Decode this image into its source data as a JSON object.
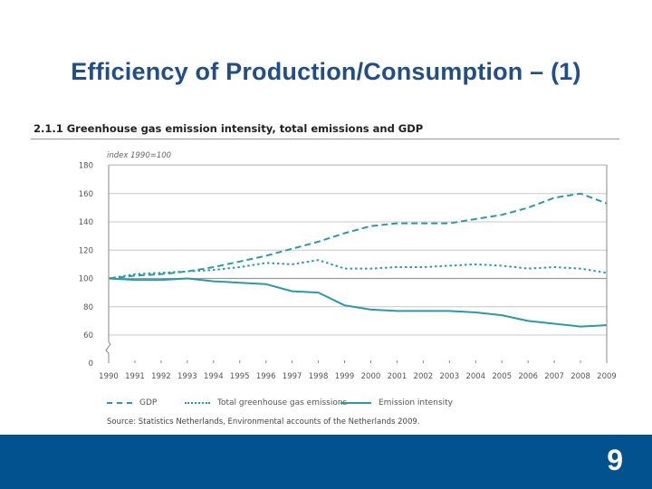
{
  "slide": {
    "title": "Efficiency of Production/Consumption – (1)",
    "page_number": "9",
    "footer_color": "#02528f",
    "title_color": "#1f4e8a"
  },
  "chart_data": {
    "type": "line",
    "title": "2.1.1  Greenhouse gas emission intensity, total emissions and GDP",
    "ylabel": "index 1990=100",
    "xlabel": "",
    "source": "Source: Statistics Netherlands, Environmental accounts of the Netherlands 2009.",
    "x": [
      1990,
      1991,
      1992,
      1993,
      1994,
      1995,
      1996,
      1997,
      1998,
      1999,
      2000,
      2001,
      2002,
      2003,
      2004,
      2005,
      2006,
      2007,
      2008,
      2009
    ],
    "x_tick_labels": [
      "1990",
      "1991",
      "1992",
      "1993",
      "1994",
      "1995",
      "1996",
      "1997",
      "1998",
      "1999",
      "2000",
      "2001",
      "2002",
      "2003",
      "2004",
      "2005",
      "2006",
      "2007",
      "2008",
      "2009"
    ],
    "y_tick_labels": [
      "0",
      "60",
      "80",
      "100",
      "120",
      "140",
      "160",
      "180"
    ],
    "y_ticks": [
      0,
      60,
      80,
      100,
      120,
      140,
      160,
      180
    ],
    "ylim": [
      0,
      180
    ],
    "axis_break": "between 0 and 60",
    "grid": true,
    "legend_position": "bottom",
    "line_color": "#2a9aa8",
    "series": [
      {
        "name": "GDP",
        "style": "dashed",
        "values": [
          100,
          102,
          103,
          105,
          108,
          112,
          116,
          121,
          126,
          132,
          137,
          139,
          139,
          139,
          142,
          145,
          150,
          157,
          160,
          153
        ]
      },
      {
        "name": "Total greenhouse gas emissions",
        "style": "dotted",
        "values": [
          100,
          103,
          104,
          105,
          106,
          108,
          111,
          110,
          113,
          107,
          107,
          108,
          108,
          109,
          110,
          109,
          107,
          108,
          107,
          104
        ]
      },
      {
        "name": "Emission intensity",
        "style": "solid",
        "values": [
          100,
          99,
          99,
          100,
          98,
          97,
          96,
          91,
          90,
          81,
          78,
          77,
          77,
          77,
          76,
          74,
          70,
          68,
          66,
          67
        ]
      }
    ]
  }
}
